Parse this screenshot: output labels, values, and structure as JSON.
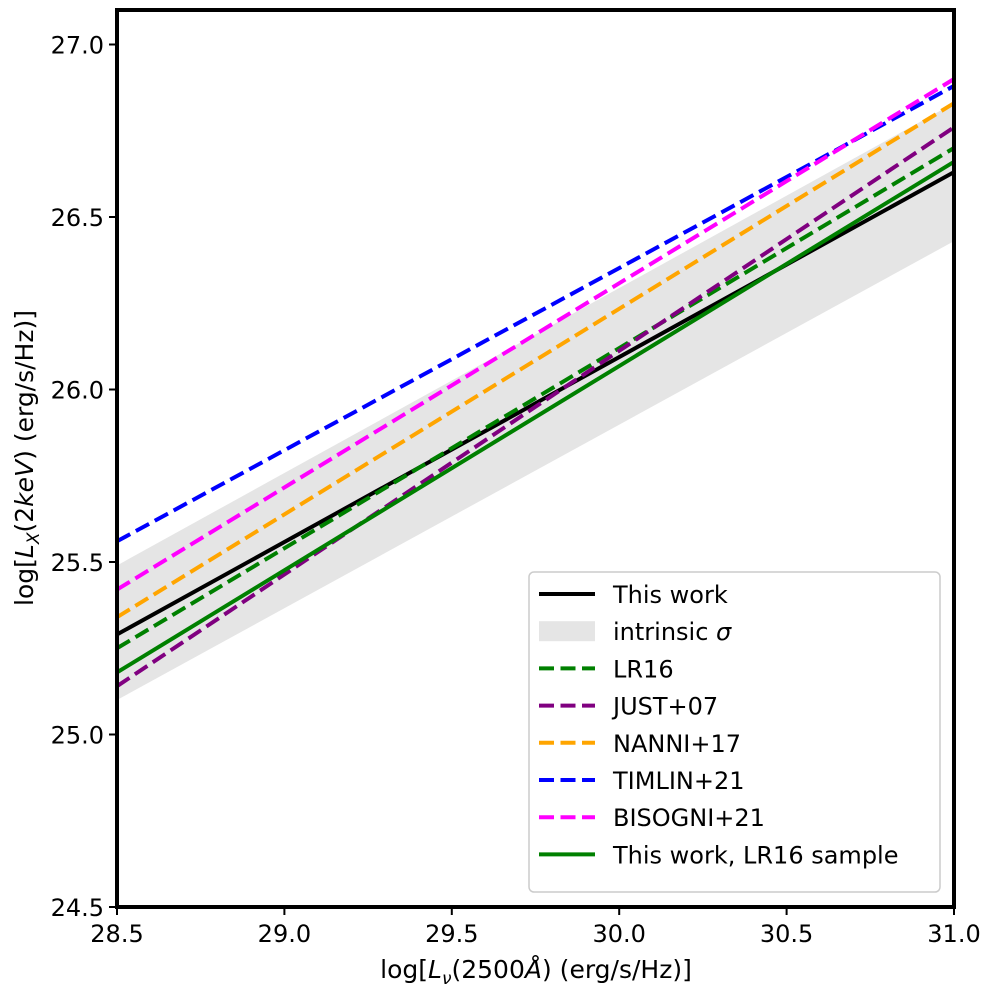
{
  "chart_data": {
    "type": "line",
    "title": "",
    "xlabel": "log[L_ν(2500Å) (erg/s/Hz)]",
    "ylabel": "log[L_X(2keV) (erg/s/Hz)]",
    "xlabel_parts": {
      "prefix": "log[",
      "var": "L",
      "sub": "ν",
      "mid": "(2500",
      "angstrom": "Å",
      "suffix": ") (erg/s/Hz)]"
    },
    "ylabel_parts": {
      "prefix": "log[",
      "var": "L",
      "sub": "X",
      "mid": "(2",
      "italic": "keV",
      "suffix": ") (erg/s/Hz)]"
    },
    "xlim": [
      28.5,
      31.0
    ],
    "ylim": [
      24.5,
      27.1
    ],
    "xticks": [
      28.5,
      29.0,
      29.5,
      30.0,
      30.5,
      31.0
    ],
    "xtick_labels": [
      "28.5",
      "29.0",
      "29.5",
      "30.0",
      "30.5",
      "31.0"
    ],
    "yticks": [
      24.5,
      25.0,
      25.5,
      26.0,
      26.5,
      27.0
    ],
    "ytick_labels": [
      "24.5",
      "25.0",
      "25.5",
      "26.0",
      "26.5",
      "27.0"
    ],
    "grid": false,
    "legend_position": "lower-right",
    "intrinsic_band": {
      "name": "intrinsic σ",
      "color": "#e5e5e5",
      "x": [
        28.5,
        31.0
      ],
      "upper": [
        25.49,
        26.83
      ],
      "lower": [
        25.1,
        26.43
      ]
    },
    "series": [
      {
        "name": "This work",
        "label": "This work",
        "color": "#000000",
        "style": "solid",
        "x": [
          28.5,
          31.0
        ],
        "y": [
          25.29,
          26.63
        ]
      },
      {
        "name": "LR16",
        "label": "LR16",
        "color": "#008000",
        "style": "dashed",
        "x": [
          28.5,
          31.0
        ],
        "y": [
          25.25,
          26.7
        ]
      },
      {
        "name": "JUST+07",
        "label": "JUST+07",
        "color": "#800080",
        "style": "dashed",
        "x": [
          28.5,
          31.0
        ],
        "y": [
          25.14,
          26.76
        ]
      },
      {
        "name": "NANNI+17",
        "label": "NANNI+17",
        "color": "#ffa500",
        "style": "dashed",
        "x": [
          28.5,
          31.0
        ],
        "y": [
          25.34,
          26.83
        ]
      },
      {
        "name": "TIMLIN+21",
        "label": "TIMLIN+21",
        "color": "#0000ff",
        "style": "dashed",
        "x": [
          28.5,
          31.0
        ],
        "y": [
          25.56,
          26.88
        ]
      },
      {
        "name": "BISOGNI+21",
        "label": "BISOGNI+21",
        "color": "#ff00ff",
        "style": "dashed",
        "x": [
          28.5,
          31.0
        ],
        "y": [
          25.42,
          26.9
        ]
      },
      {
        "name": "This work, LR16 sample",
        "label": "This work, LR16 sample",
        "color": "#008000",
        "style": "solid",
        "x": [
          28.5,
          31.0
        ],
        "y": [
          25.18,
          26.66
        ]
      }
    ],
    "legend": {
      "items": [
        {
          "label": "This work",
          "color": "#000000",
          "kind": "solid"
        },
        {
          "label": "intrinsic σ",
          "label_text": "intrinsic ",
          "label_sigma": "σ",
          "color": "#e5e5e5",
          "kind": "patch"
        },
        {
          "label": "LR16",
          "color": "#008000",
          "kind": "dashed"
        },
        {
          "label": "JUST+07",
          "color": "#800080",
          "kind": "dashed"
        },
        {
          "label": "NANNI+17",
          "color": "#ffa500",
          "kind": "dashed"
        },
        {
          "label": "TIMLIN+21",
          "color": "#0000ff",
          "kind": "dashed"
        },
        {
          "label": "BISOGNI+21",
          "color": "#ff00ff",
          "kind": "dashed"
        },
        {
          "label": "This work, LR16 sample",
          "color": "#008000",
          "kind": "solid"
        }
      ]
    }
  }
}
